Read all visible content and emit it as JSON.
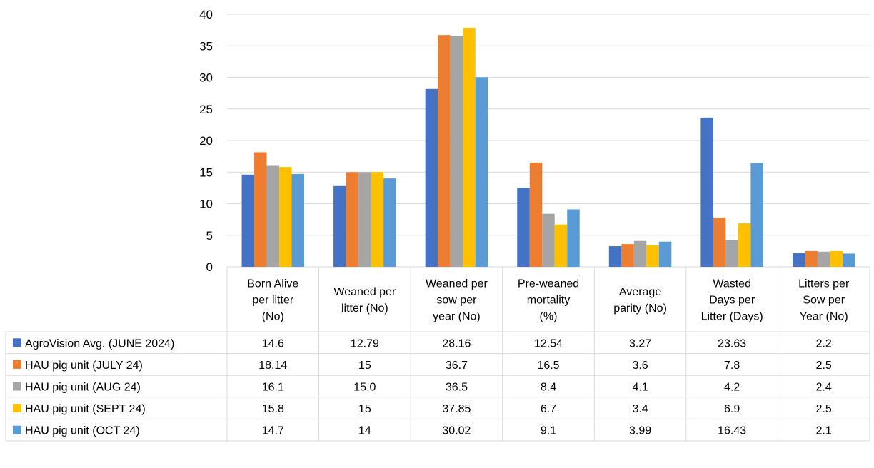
{
  "chart_data": {
    "type": "bar",
    "categories": [
      [
        "Born Alive",
        "per litter",
        "(No)"
      ],
      [
        "Weaned per",
        "litter (No)"
      ],
      [
        "Weaned per",
        "sow per",
        "year (No)"
      ],
      [
        "Pre-weaned",
        "mortality",
        "(%)"
      ],
      [
        "Average",
        "parity (No)"
      ],
      [
        "Wasted",
        "Days per",
        "Litter (Days)"
      ],
      [
        "Litters per",
        "Sow per",
        "Year (No)"
      ]
    ],
    "series": [
      {
        "name": "AgroVision Avg. (JUNE 2024)",
        "color": "#4472C4",
        "values": [
          14.6,
          12.79,
          28.16,
          12.54,
          3.27,
          23.63,
          2.2
        ],
        "labels": [
          "14.6",
          "12.79",
          "28.16",
          "12.54",
          "3.27",
          "23.63",
          "2.2"
        ]
      },
      {
        "name": "HAU pig unit (JULY 24)",
        "color": "#ED7D31",
        "values": [
          18.14,
          15,
          36.7,
          16.5,
          3.6,
          7.8,
          2.5
        ],
        "labels": [
          "18.14",
          "15",
          "36.7",
          "16.5",
          "3.6",
          "7.8",
          "2.5"
        ]
      },
      {
        "name": "HAU pig unit (AUG 24)",
        "color": "#A5A5A5",
        "values": [
          16.1,
          15.0,
          36.5,
          8.4,
          4.1,
          4.2,
          2.4
        ],
        "labels": [
          "16.1",
          "15.0",
          "36.5",
          "8.4",
          "4.1",
          "4.2",
          "2.4"
        ]
      },
      {
        "name": "HAU pig unit (SEPT 24)",
        "color": "#FFC000",
        "values": [
          15.8,
          15,
          37.85,
          6.7,
          3.4,
          6.9,
          2.5
        ],
        "labels": [
          "15.8",
          "15",
          "37.85",
          "6.7",
          "3.4",
          "6.9",
          "2.5"
        ]
      },
      {
        "name": "HAU pig unit (OCT 24)",
        "color": "#5B9BD5",
        "values": [
          14.7,
          14,
          30.02,
          9.1,
          3.99,
          16.43,
          2.1
        ],
        "labels": [
          "14.7",
          "14",
          "30.02",
          "9.1",
          "3.99",
          "16.43",
          "2.1"
        ]
      }
    ],
    "ylim": [
      0,
      40
    ],
    "yticks": [
      0,
      5,
      10,
      15,
      20,
      25,
      30,
      35,
      40
    ],
    "grid": true,
    "legend": "data-table",
    "title": "",
    "xlabel": "",
    "ylabel": ""
  }
}
